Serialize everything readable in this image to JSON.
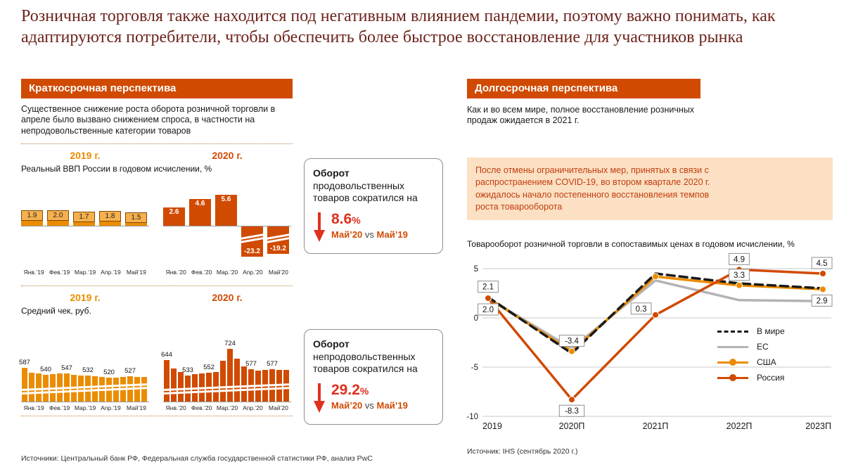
{
  "title": "Розничная торговля также находится под негативным влиянием пандемии, поэтому важно понимать, как адаптируются потребители, чтобы обеспечить более быстрое восстановление для участников рынка",
  "left_panel": {
    "header": "Краткосрочная перспектива",
    "description": "Существенное снижение роста оборота розничной торговли в апреле было вызвано снижением спроса, в частности на непродовольственные категории товаров",
    "sources": "Источники: Центральный банк РФ, Федеральная служба государственной статистики РФ, анализ PwC"
  },
  "right_panel": {
    "header": "Долгосрочная перспектива",
    "description": "Как и во всем мире, полное восстановление розничных продаж ожидается в 2021 г.",
    "highlight": "После отмены ограничительных мер, принятых в связи с распространением COVID-19, во втором квартале 2020 г. ожидалось начало постепенного восстановления темпов роста товарооборота",
    "source": "Источник: IHS (сентябрь 2020 г.)"
  },
  "callouts": [
    {
      "lead": "Оборот",
      "text": "продовольственных товаров сократился на",
      "value": "8.6",
      "percent_sign": "%",
      "compare_left": "Май’20",
      "compare_mid": "vs",
      "compare_right": "Май’19"
    },
    {
      "lead": "Оборот",
      "text": "непродовольственных товаров сократился на",
      "value": "29.2",
      "percent_sign": "%",
      "compare_left": "Май’20",
      "compare_mid": "vs",
      "compare_right": "Май’19"
    }
  ],
  "colors": {
    "orange_2019": "#eb8c00",
    "orange_2020": "#d04a02",
    "red_accent": "#e0301e",
    "header_bg": "#d04a02",
    "title_text": "#6d241d",
    "highlight_bg": "#fbe0c3",
    "highlight_text": "#c23d0e"
  },
  "chart_data": [
    {
      "id": "real-gdp",
      "type": "bar",
      "title": "Реальный ВВП России в годовом исчислении, %",
      "unit": "%",
      "axis_break_on_negative": true,
      "groups": [
        {
          "year": "2019 г.",
          "color": "#eb8c00",
          "categories": [
            "Янв.’19",
            "Фев.’19",
            "Мар.’19",
            "Апр.’19",
            "Май’19"
          ],
          "values": [
            1.9,
            2.0,
            1.7,
            1.8,
            1.5
          ]
        },
        {
          "year": "2020 г.",
          "color": "#d04a02",
          "categories": [
            "Янв.’20",
            "Фев.’20",
            "Мар.’20",
            "Апр.’20",
            "Май’20"
          ],
          "values": [
            2.6,
            4.6,
            5.6,
            -23.2,
            -19.2
          ]
        }
      ]
    },
    {
      "id": "average-check",
      "type": "bar",
      "title": "Средний чек, руб.",
      "unit": "руб.",
      "axis_break_at_bottom": true,
      "labeled_values_2019": [
        587,
        540,
        547,
        532,
        520,
        527
      ],
      "labeled_values_2020": [
        644,
        533,
        552,
        724,
        577,
        577
      ],
      "groups": [
        {
          "year": "2019 г.",
          "color": "#eb8c00",
          "categories": [
            "Янв.’19",
            "Фев.’19",
            "Мар.’19",
            "Апр.’19",
            "Май’19"
          ],
          "values": [
            587,
            556,
            548,
            540,
            544,
            549,
            547,
            538,
            534,
            532,
            527,
            523,
            520,
            517,
            522,
            527,
            524,
            526
          ],
          "labels": [
            "587",
            "",
            "",
            "540",
            "",
            "",
            "547",
            "",
            "",
            "532",
            "",
            "",
            "520",
            "",
            "",
            "527",
            "",
            ""
          ]
        },
        {
          "year": "2020 г.",
          "color": "#d04a02",
          "categories": [
            "Янв.’20",
            "Фев.’20",
            "Мар.’20",
            "Апр.’20",
            "Май’20"
          ],
          "values": [
            644,
            586,
            560,
            533,
            542,
            548,
            552,
            561,
            640,
            724,
            656,
            601,
            577,
            571,
            574,
            577,
            575,
            576
          ],
          "labels": [
            "644",
            "",
            "",
            "533",
            "",
            "",
            "552",
            "",
            "",
            "724",
            "",
            "",
            "577",
            "",
            "",
            "577",
            "",
            ""
          ]
        }
      ]
    },
    {
      "id": "retail-turnover-forecast",
      "type": "line",
      "title": "Товарооборот розничной торговли в сопоставимых ценах в годовом исчислении, %",
      "categories": [
        "2019",
        "2020П",
        "2021П",
        "2022П",
        "2023П"
      ],
      "ylim": [
        -10,
        5
      ],
      "yticks": [
        5,
        0,
        -5,
        -10
      ],
      "grid": true,
      "legend_position": "middle-right",
      "series": [
        {
          "name": "В мире",
          "color": "#1a1a1a",
          "dash": true,
          "marker": false,
          "values": [
            2.1,
            -3.6,
            4.5,
            3.5,
            3.0
          ]
        },
        {
          "name": "ЕС",
          "color": "#b3b3b3",
          "dash": false,
          "marker": false,
          "values": [
            2.0,
            -3.1,
            3.8,
            1.8,
            1.7
          ]
        },
        {
          "name": "США",
          "color": "#eb8c00",
          "dash": false,
          "marker": true,
          "values": [
            2.0,
            -3.4,
            4.2,
            3.3,
            2.9
          ]
        },
        {
          "name": "Россия",
          "color": "#d04a02",
          "dash": false,
          "marker": true,
          "values": [
            2.0,
            -8.3,
            0.3,
            4.9,
            4.5
          ]
        }
      ],
      "point_labels": [
        {
          "text": "2.1",
          "cat": 0,
          "value": 2.1,
          "pos": "above"
        },
        {
          "text": "2.0",
          "cat": 0,
          "value": 2.0,
          "pos": "below"
        },
        {
          "text": "-3.4",
          "cat": 1,
          "value": -3.4,
          "pos": "above"
        },
        {
          "text": "-8.3",
          "cat": 1,
          "value": -8.3,
          "pos": "below"
        },
        {
          "text": "0.3",
          "cat": 2,
          "value": 0.3,
          "pos": "left"
        },
        {
          "text": "4.9",
          "cat": 3,
          "value": 4.9,
          "pos": "above"
        },
        {
          "text": "3.3",
          "cat": 3,
          "value": 3.3,
          "pos": "above"
        },
        {
          "text": "4.5",
          "cat": 4,
          "value": 4.5,
          "pos": "above"
        },
        {
          "text": "2.9",
          "cat": 4,
          "value": 2.9,
          "pos": "below"
        }
      ]
    }
  ]
}
